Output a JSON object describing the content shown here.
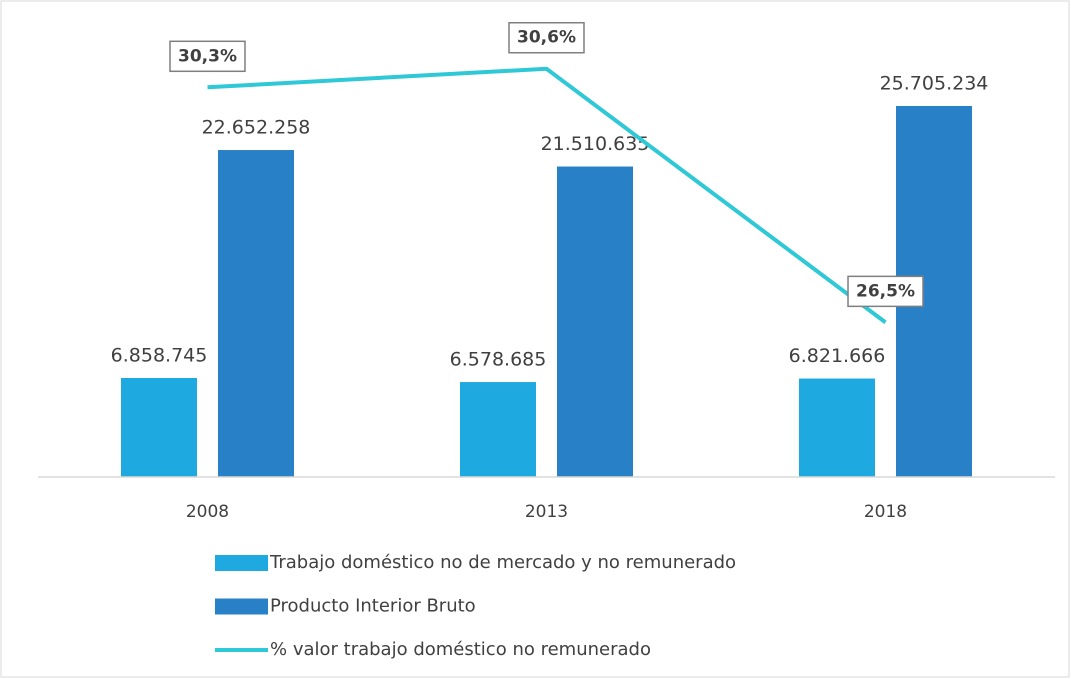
{
  "chart_data": {
    "type": "bar",
    "categories": [
      "2008",
      "2013",
      "2018"
    ],
    "ylim": [
      0,
      30000000
    ],
    "y2lim": [
      24,
      31
    ],
    "series": [
      {
        "name": "Trabajo doméstico no de mercado y no remunerado",
        "color": "#1ea9e1",
        "type": "bar",
        "values": [
          6858745,
          6578685,
          6821666
        ],
        "value_labels": [
          "6.858.745",
          "6.578.685",
          "6.821.666"
        ]
      },
      {
        "name": "Producto Interior Bruto",
        "color": "#2880c6",
        "type": "bar",
        "values": [
          22652258,
          21510635,
          25705234
        ],
        "value_labels": [
          "22.652.258",
          "21.510.635",
          "25.705.234"
        ]
      },
      {
        "name": "% valor trabajo doméstico no remunerado",
        "color": "#2ec8d6",
        "type": "line",
        "axis": "y2",
        "values": [
          30.3,
          30.6,
          26.5
        ],
        "value_labels": [
          "30,3%",
          "30,6%",
          "26,5%"
        ]
      }
    ]
  }
}
